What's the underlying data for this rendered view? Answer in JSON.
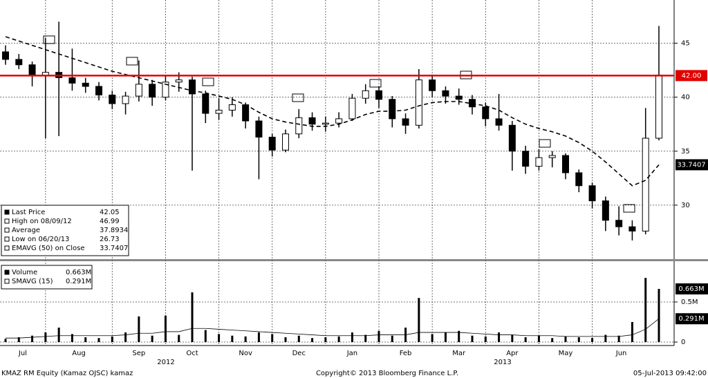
{
  "chart_data": [
    {
      "type": "candlestick",
      "categories": [
        "Jul",
        null,
        null,
        "Aug",
        null,
        null,
        null,
        null,
        "Sep",
        null,
        null,
        null,
        "Oct",
        null,
        null,
        null,
        "Nov",
        null,
        null,
        null,
        "Dec",
        null,
        null,
        null,
        "Jan",
        null,
        null,
        null,
        "Feb",
        null,
        null,
        null,
        "Mar",
        null,
        null,
        null,
        "Apr",
        null,
        null,
        null,
        "May",
        null,
        null,
        null,
        "Jun",
        null,
        null,
        null,
        null,
        null
      ],
      "years": [
        "2012",
        "2013"
      ],
      "open": [
        44.2,
        43.5,
        43.0,
        42.0,
        42.3,
        41.8,
        41.3,
        41.0,
        40.2,
        39.4,
        40.1,
        41.2,
        40.0,
        41.4,
        41.6,
        40.3,
        38.5,
        38.8,
        39.3,
        37.8,
        36.3,
        35.1,
        36.6,
        38.1,
        37.5,
        37.6,
        38.0,
        39.9,
        40.6,
        39.8,
        38.0,
        37.4,
        41.6,
        40.6,
        40.1,
        39.8,
        39.1,
        38.0,
        37.4,
        35.0,
        33.6,
        34.4,
        34.6,
        33.0,
        31.8,
        30.4,
        28.6,
        28.0,
        27.6,
        36.2
      ],
      "high": [
        44.8,
        44.0,
        43.3,
        45.5,
        46.99,
        44.5,
        41.8,
        41.4,
        40.6,
        40.5,
        43.4,
        41.6,
        42.0,
        42.3,
        41.9,
        40.6,
        39.9,
        40.0,
        39.5,
        38.2,
        36.6,
        37.0,
        38.9,
        38.6,
        38.2,
        38.6,
        40.3,
        41.2,
        41.0,
        40.1,
        38.5,
        42.6,
        42.1,
        41.0,
        40.8,
        40.2,
        39.5,
        40.3,
        37.8,
        35.5,
        35.2,
        35.0,
        34.8,
        33.3,
        32.1,
        30.8,
        29.9,
        28.6,
        39.0,
        46.6
      ],
      "low": [
        43.0,
        42.6,
        41.0,
        36.2,
        36.4,
        40.6,
        40.4,
        39.7,
        38.9,
        38.4,
        39.6,
        39.2,
        39.7,
        40.5,
        33.2,
        37.6,
        37.9,
        38.2,
        37.1,
        32.4,
        34.5,
        34.9,
        36.2,
        36.9,
        36.8,
        37.2,
        37.8,
        39.4,
        39.0,
        37.2,
        36.6,
        37.1,
        40.0,
        39.4,
        39.3,
        38.4,
        37.3,
        36.9,
        33.2,
        32.9,
        33.2,
        33.5,
        32.4,
        31.2,
        29.7,
        27.6,
        27.2,
        26.73,
        27.3,
        36.0
      ],
      "close": [
        43.5,
        43.0,
        42.0,
        42.3,
        41.8,
        41.3,
        41.0,
        40.2,
        39.4,
        40.1,
        41.2,
        40.0,
        41.4,
        41.6,
        40.3,
        38.5,
        38.8,
        39.3,
        37.8,
        36.3,
        35.1,
        36.6,
        38.1,
        37.5,
        37.6,
        38.0,
        39.9,
        40.6,
        39.8,
        38.0,
        37.4,
        41.6,
        40.6,
        40.1,
        39.8,
        39.1,
        38.0,
        37.4,
        35.0,
        33.6,
        34.4,
        34.6,
        33.0,
        31.8,
        30.4,
        28.6,
        28.0,
        27.6,
        36.2,
        42.05
      ],
      "ema": [
        45.6,
        45.2,
        44.8,
        44.4,
        44.0,
        43.6,
        43.2,
        42.8,
        42.4,
        42.1,
        41.8,
        41.5,
        41.2,
        40.9,
        40.6,
        40.4,
        40.1,
        39.8,
        39.3,
        38.6,
        38.0,
        37.7,
        37.5,
        37.3,
        37.3,
        37.5,
        37.9,
        38.4,
        38.7,
        38.7,
        38.8,
        39.2,
        39.5,
        39.6,
        39.6,
        39.4,
        39.2,
        38.8,
        38.1,
        37.5,
        37.1,
        36.8,
        36.4,
        35.8,
        35.0,
        34.0,
        32.9,
        31.8,
        32.3,
        33.7407
      ],
      "color": "#000000",
      "ylim": [
        25,
        49
      ],
      "yticks": [
        30,
        35,
        40,
        45
      ],
      "grid": true,
      "reference_line": {
        "value": 42,
        "label": "42.00",
        "color": "#e00000"
      },
      "legend": [
        {
          "label": "Last Price",
          "value": 42.05
        },
        {
          "label": "High on 08/09/12",
          "value": 46.99
        },
        {
          "label": "Average",
          "value": 37.8934
        },
        {
          "label": "Low on 06/20/13",
          "value": 26.73
        },
        {
          "label": "EMAVG (50) on Close",
          "value": 33.7407
        }
      ]
    },
    {
      "type": "bar",
      "values": [
        0.04,
        0.06,
        0.08,
        0.12,
        0.18,
        0.1,
        0.06,
        0.05,
        0.07,
        0.12,
        0.32,
        0.08,
        0.33,
        0.09,
        0.62,
        0.15,
        0.1,
        0.08,
        0.07,
        0.12,
        0.1,
        0.06,
        0.08,
        0.05,
        0.06,
        0.07,
        0.12,
        0.09,
        0.14,
        0.08,
        0.18,
        0.55,
        0.1,
        0.12,
        0.14,
        0.08,
        0.07,
        0.12,
        0.09,
        0.06,
        0.08,
        0.05,
        0.07,
        0.06,
        0.05,
        0.09,
        0.08,
        0.25,
        0.8,
        0.663
      ],
      "sma": [
        0.05,
        0.05,
        0.06,
        0.07,
        0.08,
        0.08,
        0.08,
        0.08,
        0.08,
        0.09,
        0.11,
        0.11,
        0.13,
        0.13,
        0.17,
        0.17,
        0.16,
        0.15,
        0.14,
        0.13,
        0.12,
        0.11,
        0.1,
        0.09,
        0.08,
        0.08,
        0.08,
        0.08,
        0.09,
        0.09,
        0.09,
        0.12,
        0.12,
        0.12,
        0.12,
        0.11,
        0.1,
        0.09,
        0.09,
        0.08,
        0.08,
        0.08,
        0.07,
        0.07,
        0.07,
        0.07,
        0.07,
        0.09,
        0.16,
        0.291
      ],
      "color": "#000000",
      "ylim": [
        0,
        1
      ],
      "yticks": [
        0,
        {
          "value": 0.5,
          "label": "0.5M"
        }
      ],
      "grid": true,
      "legend": [
        {
          "label": "Volume",
          "value": 0.663,
          "value_label": "0.663M"
        },
        {
          "label": "SMAVG (15)",
          "value": 0.291,
          "value_label": "0.291M"
        }
      ]
    }
  ],
  "footer": {
    "left": "KMAZ RM Equity (Kamaz OJSC) kamaz",
    "center": "Copyright© 2013 Bloomberg Finance L.P.",
    "right": "05-Jul-2013 09:42:00"
  }
}
